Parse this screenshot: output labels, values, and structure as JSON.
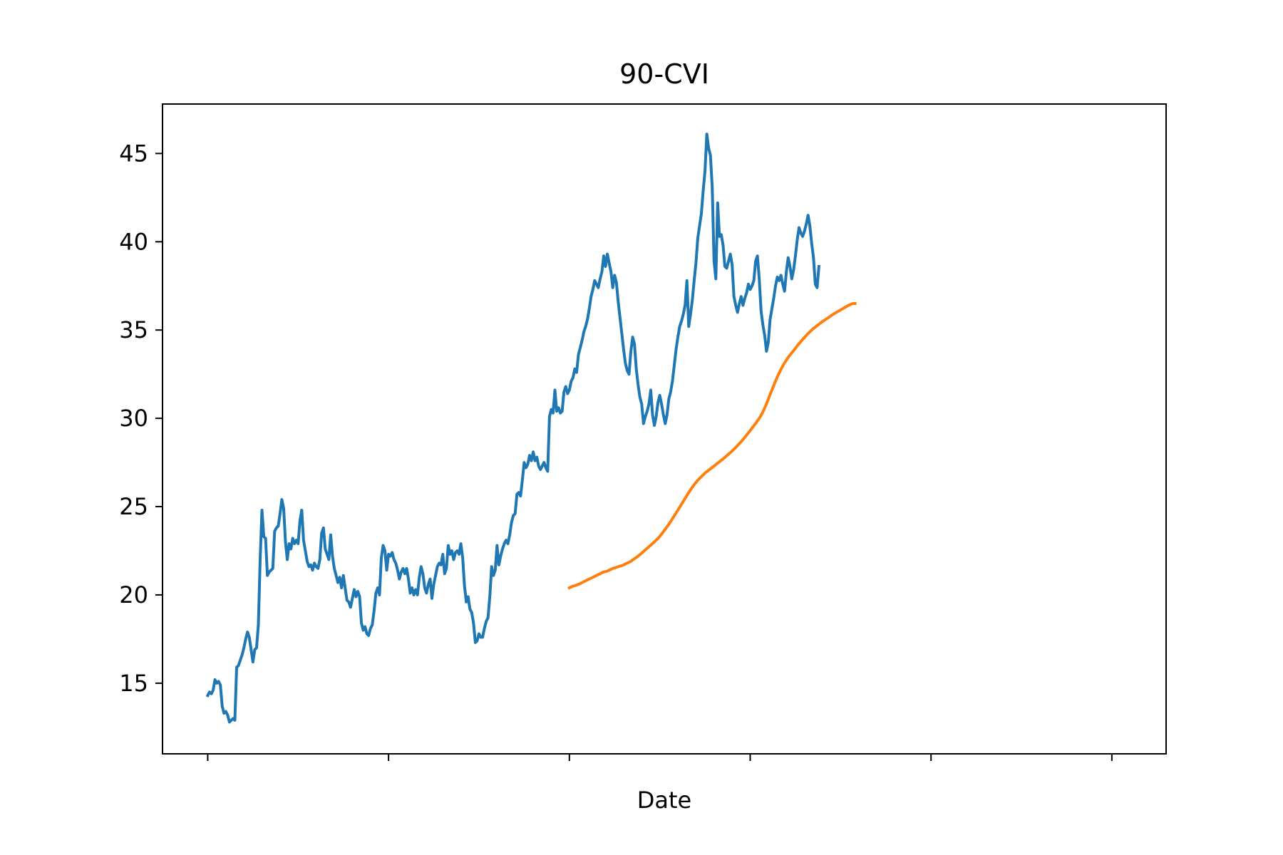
{
  "chart_data": {
    "type": "line",
    "title": "90-CVI",
    "xlabel": "Date",
    "ylabel": "",
    "xlim": [
      -25,
      530
    ],
    "ylim": [
      11.0,
      47.8
    ],
    "x_ticks": [
      0,
      100,
      200,
      300,
      400,
      500
    ],
    "x_tick_labels": [
      "",
      "",
      "",
      "",
      "",
      ""
    ],
    "y_ticks": [
      15,
      20,
      25,
      30,
      35,
      40,
      45
    ],
    "y_tick_labels": [
      "15",
      "20",
      "25",
      "30",
      "35",
      "40",
      "45"
    ],
    "grid": false,
    "colors": {
      "series_0": "#1f77b4",
      "series_1": "#ff7f0e"
    },
    "series": [
      {
        "x_start": 0,
        "values": [
          14.3,
          14.5,
          14.4,
          14.6,
          15.2,
          15.0,
          15.1,
          14.9,
          13.7,
          13.3,
          13.4,
          13.2,
          12.8,
          12.9,
          13.0,
          12.9,
          15.9,
          16.0,
          16.3,
          16.6,
          17.0,
          17.5,
          17.9,
          17.6,
          16.9,
          16.2,
          16.9,
          17.0,
          18.3,
          22.0,
          24.8,
          23.3,
          23.2,
          21.1,
          21.3,
          21.4,
          21.5,
          23.6,
          23.8,
          23.9,
          24.6,
          25.4,
          24.9,
          23.0,
          22.0,
          22.9,
          22.6,
          23.2,
          22.9,
          23.1,
          22.9,
          24.2,
          24.8,
          23.1,
          22.5,
          21.9,
          21.6,
          21.7,
          21.4,
          21.8,
          21.6,
          21.5,
          22.0,
          23.5,
          23.8,
          22.6,
          22.3,
          22.0,
          23.4,
          22.2,
          21.5,
          21.1,
          20.7,
          21.0,
          20.4,
          21.1,
          20.4,
          19.7,
          19.6,
          19.3,
          19.8,
          20.3,
          19.9,
          20.2,
          19.9,
          18.4,
          18.0,
          18.2,
          17.8,
          17.7,
          18.1,
          18.3,
          19.1,
          20.1,
          20.4,
          20.0,
          22.1,
          22.8,
          22.5,
          21.4,
          22.3,
          22.2,
          22.4,
          22.0,
          21.8,
          21.4,
          20.9,
          21.3,
          21.5,
          21.2,
          21.5,
          20.9,
          20.1,
          20.4,
          20.0,
          20.3,
          20.0,
          21.0,
          21.6,
          21.2,
          20.4,
          20.1,
          20.6,
          20.9,
          19.8,
          20.6,
          21.1,
          21.6,
          21.8,
          21.7,
          22.3,
          21.2,
          21.5,
          22.8,
          22.3,
          22.5,
          22.0,
          22.4,
          22.5,
          22.3,
          22.9,
          22.1,
          20.5,
          19.6,
          19.9,
          19.2,
          19.0,
          18.4,
          17.3,
          17.4,
          17.8,
          17.6,
          17.6,
          18.1,
          18.5,
          18.7,
          19.9,
          21.6,
          21.1,
          21.4,
          22.8,
          21.7,
          22.2,
          22.6,
          22.9,
          23.1,
          22.9,
          23.4,
          24.1,
          24.5,
          24.6,
          25.7,
          25.8,
          25.6,
          26.5,
          27.5,
          27.2,
          27.4,
          27.9,
          27.6,
          28.1,
          27.6,
          27.8,
          27.3,
          27.1,
          27.3,
          27.5,
          27.2,
          27.0,
          30.1,
          30.5,
          30.3,
          31.6,
          30.4,
          30.6,
          30.3,
          30.4,
          31.5,
          31.8,
          31.4,
          31.6,
          32.1,
          32.3,
          32.8,
          32.6,
          33.6,
          34.0,
          34.4,
          34.9,
          35.2,
          35.6,
          36.2,
          36.9,
          37.3,
          37.8,
          37.6,
          37.4,
          37.9,
          38.3,
          39.2,
          38.6,
          39.3,
          38.8,
          38.3,
          37.4,
          38.1,
          37.7,
          36.6,
          35.7,
          34.8,
          33.9,
          33.1,
          32.7,
          32.5,
          33.8,
          34.6,
          34.2,
          32.8,
          31.9,
          31.2,
          30.8,
          29.7,
          30.1,
          30.4,
          30.8,
          31.6,
          30.2,
          29.6,
          30.1,
          30.9,
          31.3,
          30.8,
          30.2,
          29.7,
          30.2,
          31.1,
          31.5,
          32.1,
          33.0,
          33.9,
          34.6,
          35.2,
          35.5,
          35.9,
          36.4,
          37.8,
          35.2,
          35.9,
          36.7,
          37.8,
          38.8,
          40.2,
          40.9,
          41.6,
          42.9,
          44.0,
          46.1,
          45.3,
          44.9,
          43.1,
          38.9,
          37.9,
          42.2,
          40.3,
          40.4,
          39.8,
          38.6,
          38.5,
          38.9,
          39.3,
          38.7,
          36.9,
          36.4,
          36.0,
          36.5,
          36.9,
          36.4,
          36.8,
          37.1,
          37.6,
          37.3,
          37.5,
          37.8,
          38.9,
          39.2,
          37.9,
          36.1,
          35.3,
          34.7,
          33.8,
          34.3,
          35.6,
          36.2,
          36.8,
          37.5,
          38.0,
          37.8,
          38.1,
          37.6,
          37.2,
          38.3,
          39.1,
          38.6,
          37.9,
          38.4,
          39.2,
          40.1,
          40.8,
          40.5,
          40.3,
          40.6,
          41.0,
          41.5,
          40.9,
          39.9,
          39.1,
          37.6,
          37.4,
          38.6
        ]
      },
      {
        "x_start": 200,
        "values": [
          20.4,
          20.45,
          20.5,
          20.52,
          20.56,
          20.6,
          20.64,
          20.7,
          20.75,
          20.8,
          20.85,
          20.9,
          20.95,
          21.0,
          21.05,
          21.1,
          21.15,
          21.2,
          21.26,
          21.3,
          21.32,
          21.35,
          21.4,
          21.45,
          21.5,
          21.53,
          21.56,
          21.6,
          21.63,
          21.66,
          21.7,
          21.75,
          21.8,
          21.85,
          21.9,
          21.98,
          22.05,
          22.12,
          22.2,
          22.28,
          22.37,
          22.46,
          22.55,
          22.64,
          22.73,
          22.82,
          22.91,
          23.0,
          23.1,
          23.2,
          23.32,
          23.45,
          23.58,
          23.72,
          23.86,
          24.0,
          24.16,
          24.32,
          24.48,
          24.64,
          24.8,
          24.97,
          25.14,
          25.3,
          25.47,
          25.63,
          25.8,
          25.95,
          26.1,
          26.24,
          26.37,
          26.49,
          26.6,
          26.7,
          26.8,
          26.9,
          26.98,
          27.06,
          27.14,
          27.22,
          27.3,
          27.38,
          27.46,
          27.54,
          27.62,
          27.7,
          27.79,
          27.88,
          27.97,
          28.06,
          28.15,
          28.25,
          28.35,
          28.46,
          28.57,
          28.68,
          28.8,
          28.92,
          29.05,
          29.18,
          29.31,
          29.45,
          29.58,
          29.71,
          29.86,
          30.0,
          30.17,
          30.36,
          30.58,
          30.82,
          31.08,
          31.35,
          31.6,
          31.86,
          32.1,
          32.35,
          32.56,
          32.77,
          32.96,
          33.14,
          33.3,
          33.45,
          33.58,
          33.71,
          33.84,
          33.97,
          34.1,
          34.23,
          34.35,
          34.47,
          34.58,
          34.69,
          34.8,
          34.9,
          35.0,
          35.09,
          35.17,
          35.25,
          35.33,
          35.41,
          35.48,
          35.55,
          35.62,
          35.69,
          35.76,
          35.83,
          35.9,
          35.96,
          36.02,
          36.08,
          36.14,
          36.2,
          36.26,
          36.32,
          36.38,
          36.43,
          36.48,
          36.5,
          36.5
        ]
      }
    ]
  }
}
